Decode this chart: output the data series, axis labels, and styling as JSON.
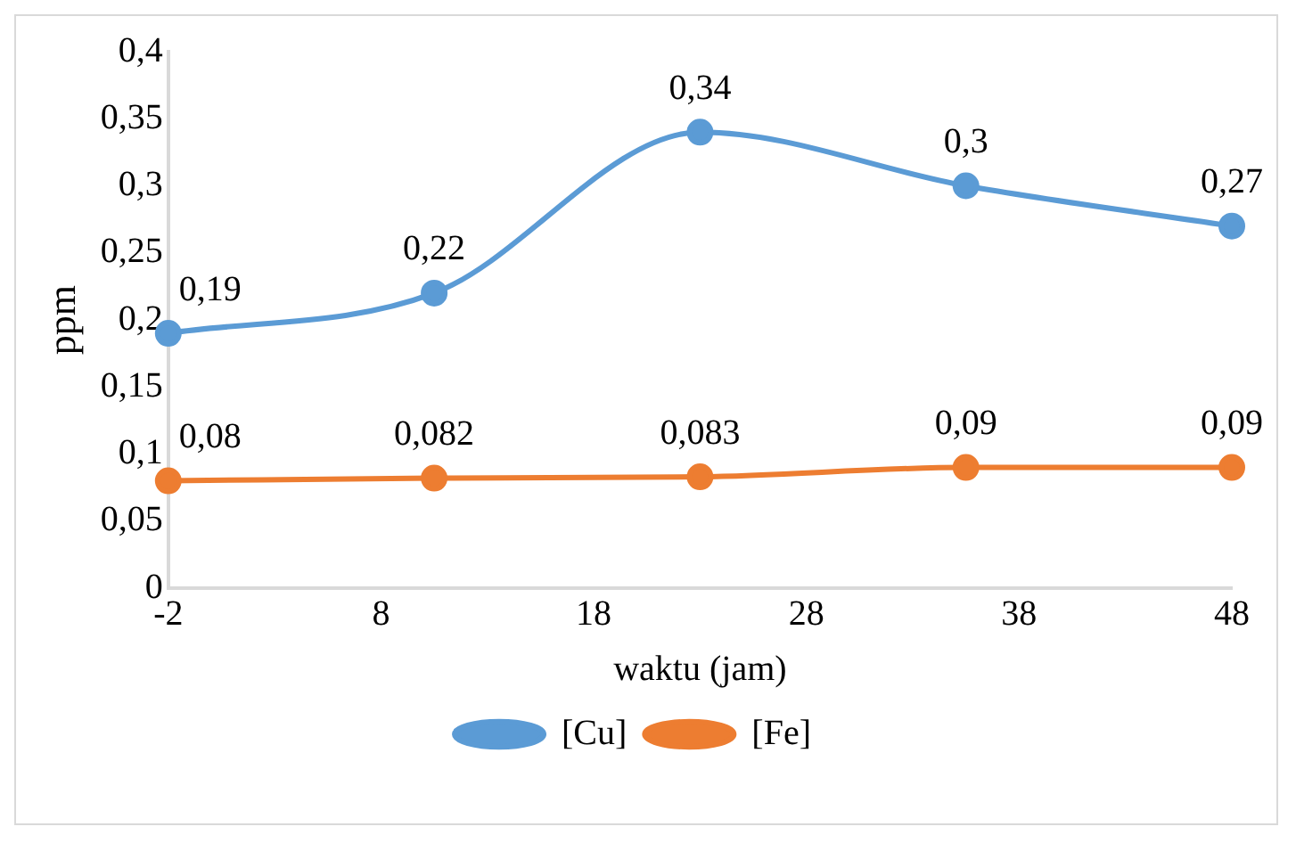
{
  "chart_data": {
    "type": "line",
    "xlabel": "waktu (jam)",
    "ylabel": "ppm",
    "x": [
      -2,
      10.5,
      23,
      35.5,
      48
    ],
    "xlim": [
      -2,
      48
    ],
    "xticks": [
      -2,
      8,
      18,
      28,
      38,
      48
    ],
    "ylim": [
      0,
      0.4
    ],
    "yticks": [
      {
        "value": 0,
        "label": "0"
      },
      {
        "value": 0.05,
        "label": "0,05"
      },
      {
        "value": 0.1,
        "label": "0,1"
      },
      {
        "value": 0.15,
        "label": "0,15"
      },
      {
        "value": 0.2,
        "label": "0,2"
      },
      {
        "value": 0.25,
        "label": "0,25"
      },
      {
        "value": 0.3,
        "label": "0,3"
      },
      {
        "value": 0.35,
        "label": "0,35"
      },
      {
        "value": 0.4,
        "label": "0,4"
      }
    ],
    "series": [
      {
        "name": "[Cu]",
        "color": "#5b9bd5",
        "values": [
          0.19,
          0.22,
          0.34,
          0.3,
          0.27
        ],
        "value_labels": [
          "0,19",
          "0,22",
          "0,34",
          "0,3",
          "0,27"
        ]
      },
      {
        "name": "[Fe]",
        "color": "#ed7d31",
        "values": [
          0.08,
          0.082,
          0.083,
          0.09,
          0.09
        ],
        "value_labels": [
          "0,08",
          "0,082",
          "0,083",
          "0,09",
          "0,09"
        ]
      }
    ],
    "grid": false,
    "legend": "bottom",
    "marker": "circle",
    "line_style": "solid"
  }
}
